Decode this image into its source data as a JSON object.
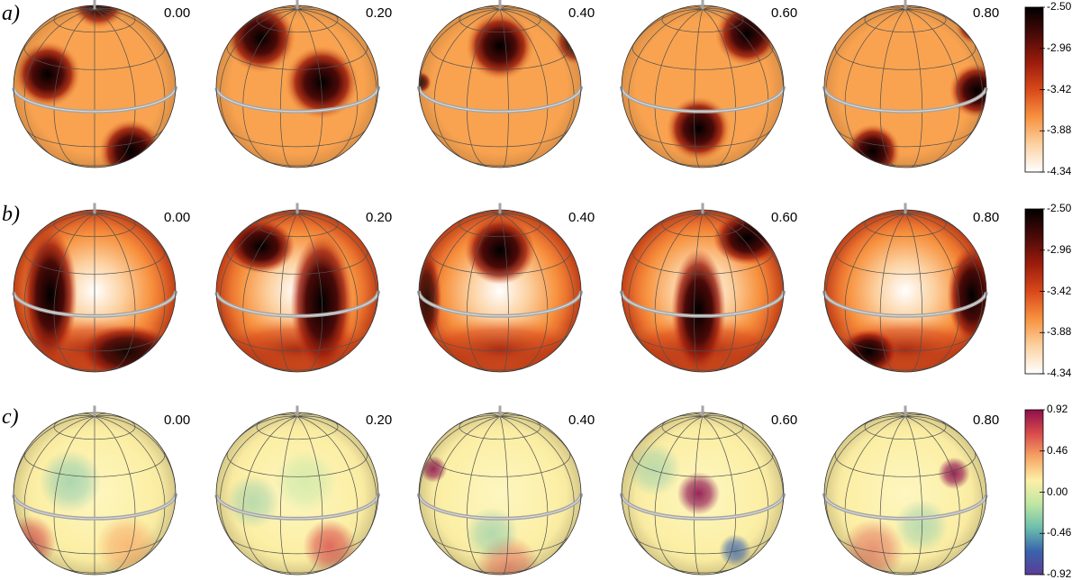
{
  "rows": [
    {
      "label": "a)",
      "phases": [
        "0.00",
        "0.20",
        "0.40",
        "0.60",
        "0.80"
      ],
      "colormap": "hot"
    },
    {
      "label": "b)",
      "phases": [
        "0.00",
        "0.20",
        "0.40",
        "0.60",
        "0.80"
      ],
      "colormap": "hot"
    },
    {
      "label": "c)",
      "phases": [
        "0.00",
        "0.20",
        "0.40",
        "0.60",
        "0.80"
      ],
      "colormap": "diverging"
    }
  ],
  "colorbars": [
    {
      "ticks": [
        "-2.50",
        "-2.96",
        "-3.42",
        "-3.88",
        "-4.34"
      ]
    },
    {
      "ticks": [
        "-2.50",
        "-2.96",
        "-3.42",
        "-3.88",
        "-4.34"
      ]
    },
    {
      "ticks": [
        "0.92",
        "0.46",
        "0.00",
        "-0.46",
        "-0.92"
      ]
    }
  ],
  "colors": {
    "hot": [
      "#000000",
      "#4a0a08",
      "#9b1c0c",
      "#d9481a",
      "#f7923f",
      "#fcd2a2",
      "#ffffff"
    ],
    "diverging": [
      "#8e0f4e",
      "#d94a4a",
      "#f6a565",
      "#fdf0a7",
      "#bfe6a2",
      "#6cc0ad",
      "#3a64ad",
      "#5b3c96"
    ],
    "photosphere": "#f9a350",
    "grid": "#505050",
    "equator_ring": "#a4a4a4"
  }
}
